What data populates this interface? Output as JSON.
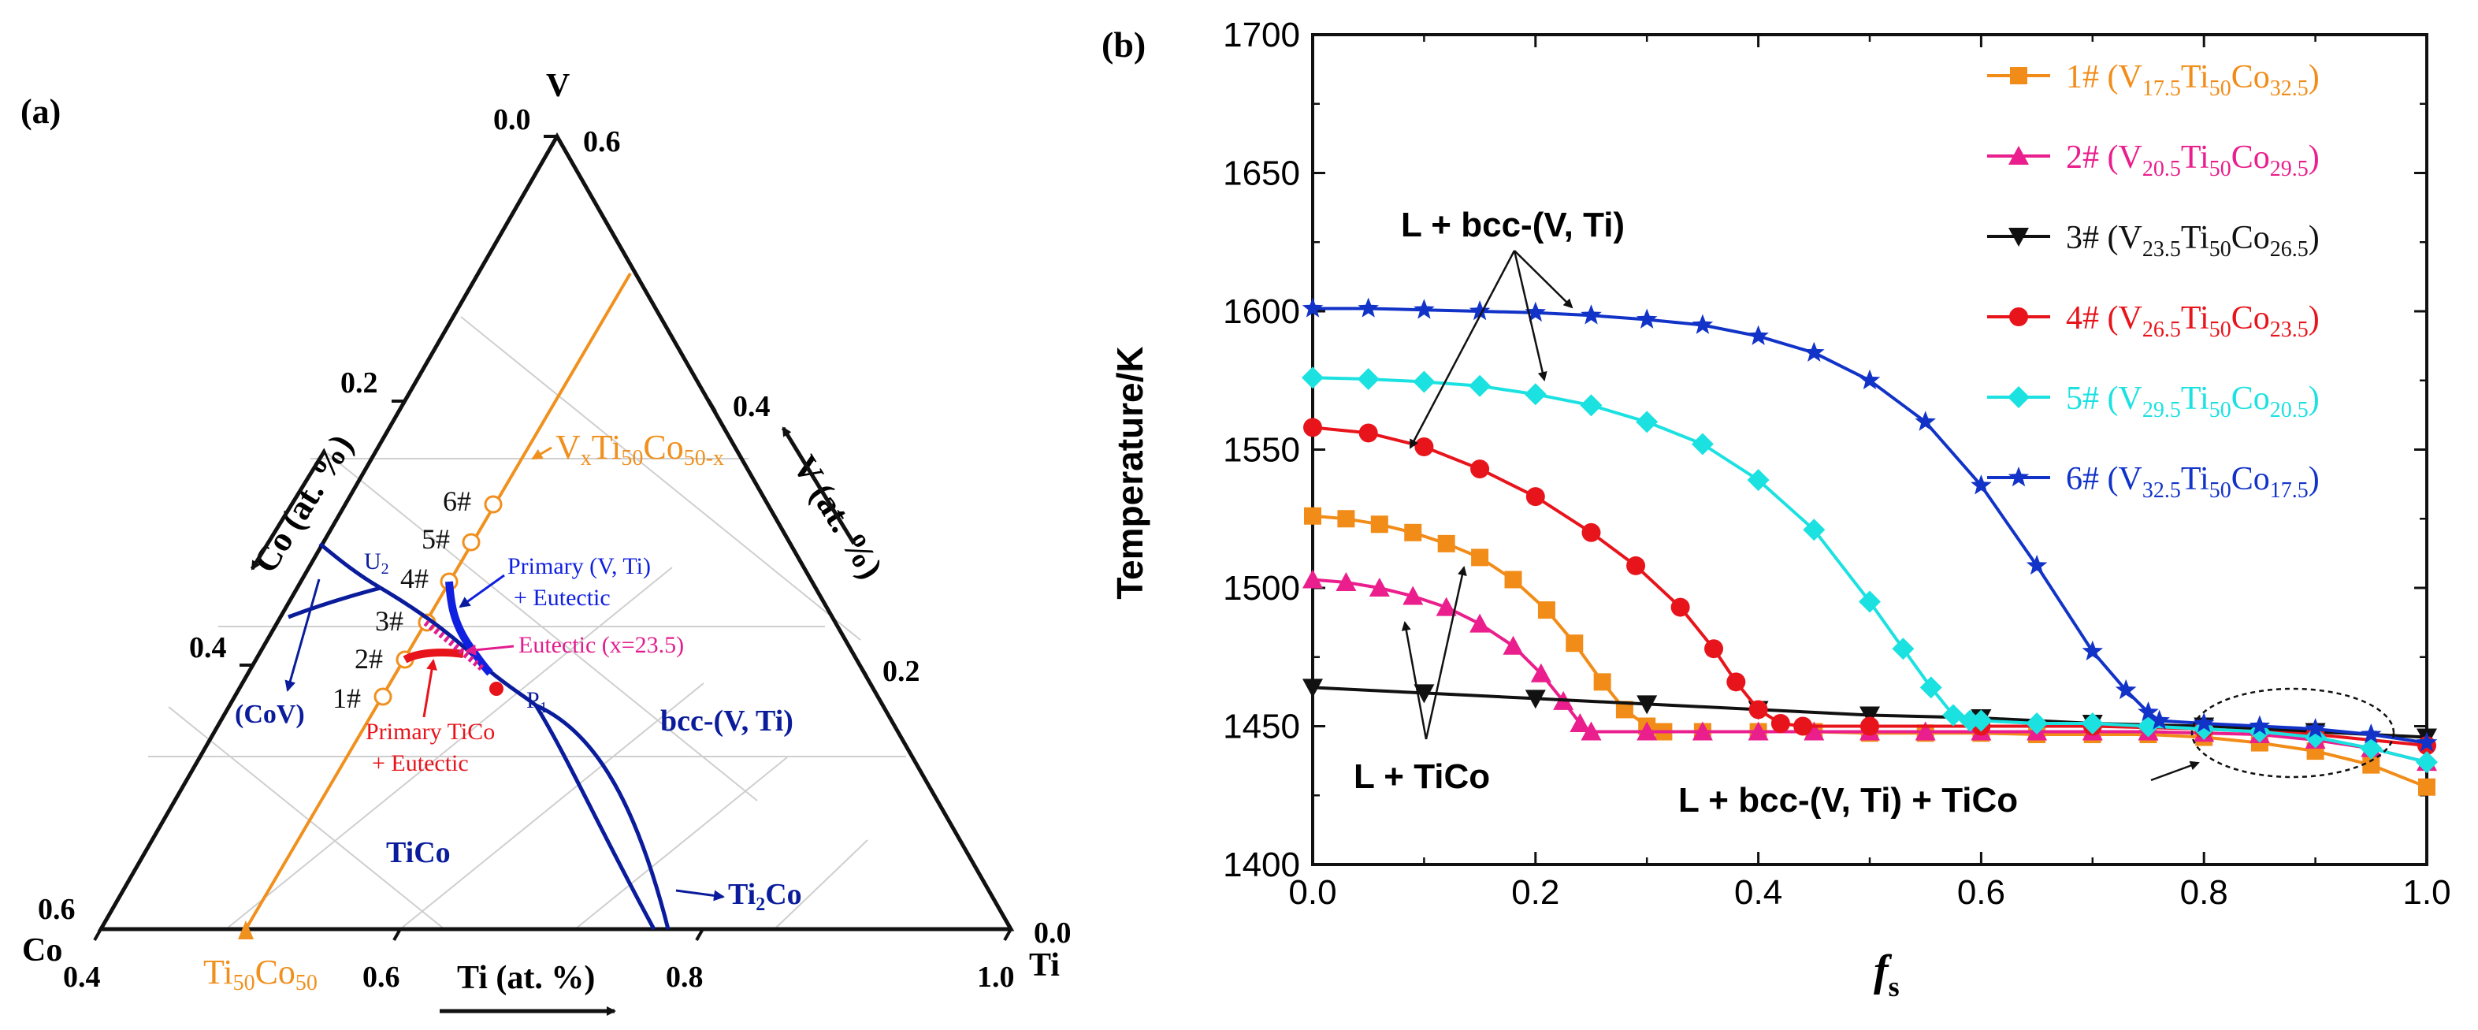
{
  "panel_a": {
    "label": "(a)",
    "vertex_labels": {
      "top": "V",
      "left": "Co",
      "right": "Ti"
    },
    "axis_titles": {
      "co": "Co (at. %)",
      "v": "V (at. %)",
      "ti": "Ti (at. %)"
    },
    "ti_ticks": [
      "0.4",
      "0.6",
      "0.8",
      "1.0"
    ],
    "co_ticks": [
      "0.0",
      "0.2",
      "0.4",
      "0.6"
    ],
    "v_ticks": [
      "0.6",
      "0.4",
      "0.2",
      "0.0"
    ],
    "section_line_label": "V",
    "section_line_label_sub1": "x",
    "section_line_label_mid": "Ti",
    "section_line_label_sub2": "50",
    "section_line_label_co": "Co",
    "section_line_label_sub3": "50-x",
    "base_label": "Ti",
    "base_label_sub1": "50",
    "base_label_co": "Co",
    "base_label_sub2": "50",
    "alloy_labels": [
      "1#",
      "2#",
      "3#",
      "4#",
      "5#",
      "6#"
    ],
    "points": {
      "u": "U",
      "u_sub": "2",
      "p": "P",
      "p_sub": "1"
    },
    "regions": {
      "cov": "(CoV)",
      "bcc": "bcc-(V, Ti)",
      "tico": "TiCo",
      "ti2co": "Ti",
      "ti2co_sub": "2",
      "ti2co_co": "Co"
    },
    "annotations": {
      "primary_vti_1": "Primary (V, Ti)",
      "primary_vti_2": "+ Eutectic",
      "eutectic": "Eutectic (x=23.5)",
      "primary_tico_1": "Primary TiCo",
      "primary_tico_2": "+ Eutectic"
    },
    "colors": {
      "orange": "#F0901E",
      "blue": "#0A1C9B",
      "red": "#E8141B",
      "magenta": "#E21C8E"
    }
  },
  "chart_data": {
    "type": "line",
    "panel_label": "(b)",
    "xlabel": "f",
    "xlabel_sub": "s",
    "ylabel": "Temperature/K",
    "xlim": [
      0,
      1.0
    ],
    "ylim": [
      1400,
      1700
    ],
    "xticks": [
      0.0,
      0.2,
      0.4,
      0.6,
      0.8,
      1.0
    ],
    "xtick_labels": [
      "0.0",
      "0.2",
      "0.4",
      "0.6",
      "0.8",
      "1.0"
    ],
    "yticks": [
      1400,
      1450,
      1500,
      1550,
      1600,
      1650,
      1700
    ],
    "ytick_labels": [
      "1400",
      "1450",
      "1500",
      "1550",
      "1600",
      "1650",
      "1700"
    ],
    "annotations": {
      "top": "L + bcc-(V, Ti)",
      "left": "L + TiCo",
      "bottom": "L + bcc-(V, Ti) + TiCo"
    },
    "series": [
      {
        "name": "1#",
        "v": "17.5",
        "ti": "50",
        "co": "32.5",
        "color": "#F28C18",
        "marker": "square",
        "x": [
          0,
          0.03,
          0.06,
          0.09,
          0.12,
          0.15,
          0.18,
          0.21,
          0.235,
          0.26,
          0.28,
          0.3,
          0.315,
          0.35,
          0.4,
          0.45,
          0.5,
          0.55,
          0.6,
          0.65,
          0.7,
          0.75,
          0.8,
          0.85,
          0.9,
          0.95,
          1.0
        ],
        "y": [
          1526,
          1525,
          1523,
          1520,
          1516,
          1511,
          1503,
          1492,
          1480,
          1466,
          1456,
          1450,
          1448,
          1448,
          1448,
          1448,
          1447.5,
          1447.5,
          1447.5,
          1447,
          1447,
          1447,
          1446,
          1444,
          1441,
          1436,
          1428
        ]
      },
      {
        "name": "2#",
        "v": "20.5",
        "ti": "50",
        "co": "29.5",
        "color": "#EA1E8C",
        "marker": "triangle-up",
        "x": [
          0,
          0.03,
          0.06,
          0.09,
          0.12,
          0.15,
          0.18,
          0.205,
          0.225,
          0.24,
          0.25,
          0.3,
          0.35,
          0.4,
          0.45,
          0.5,
          0.55,
          0.6,
          0.65,
          0.7,
          0.75,
          0.8,
          0.85,
          0.9,
          0.95,
          1.0
        ],
        "y": [
          1503,
          1502,
          1500,
          1497,
          1493,
          1487,
          1479,
          1469,
          1459,
          1451,
          1448,
          1448,
          1448,
          1448,
          1448,
          1448,
          1448,
          1448,
          1448,
          1448,
          1448,
          1447.5,
          1447,
          1445,
          1442,
          1437
        ]
      },
      {
        "name": "3#",
        "v": "23.5",
        "ti": "50",
        "co": "26.5",
        "color": "#111111",
        "marker": "triangle-down",
        "x": [
          0,
          0.1,
          0.2,
          0.3,
          0.4,
          0.5,
          0.6,
          0.7,
          0.8,
          0.9,
          1.0
        ],
        "y": [
          1464,
          1462,
          1460,
          1458,
          1456,
          1454,
          1453,
          1451,
          1450,
          1448,
          1446
        ]
      },
      {
        "name": "4#",
        "v": "26.5",
        "ti": "50",
        "co": "23.5",
        "color": "#E8141B",
        "marker": "circle",
        "x": [
          0,
          0.05,
          0.1,
          0.15,
          0.2,
          0.25,
          0.29,
          0.33,
          0.36,
          0.38,
          0.4,
          0.42,
          0.44,
          0.5,
          0.6,
          0.7,
          0.8,
          0.9,
          1.0
        ],
        "y": [
          1558,
          1556,
          1551,
          1543,
          1533,
          1520,
          1508,
          1493,
          1478,
          1466,
          1456,
          1451,
          1450,
          1450,
          1450,
          1450,
          1449,
          1447,
          1443
        ]
      },
      {
        "name": "5#",
        "v": "29.5",
        "ti": "50",
        "co": "20.5",
        "color": "#1CE1E1",
        "marker": "diamond",
        "x": [
          0,
          0.05,
          0.1,
          0.15,
          0.2,
          0.25,
          0.3,
          0.35,
          0.4,
          0.45,
          0.5,
          0.53,
          0.555,
          0.575,
          0.59,
          0.6,
          0.65,
          0.7,
          0.75,
          0.8,
          0.85,
          0.9,
          0.95,
          1.0
        ],
        "y": [
          1576,
          1575.5,
          1574.5,
          1573,
          1570,
          1566,
          1560,
          1552,
          1539,
          1521,
          1495,
          1478,
          1464,
          1454,
          1452,
          1452,
          1451,
          1451,
          1450,
          1449,
          1448,
          1446,
          1442,
          1437
        ]
      },
      {
        "name": "6#",
        "v": "32.5",
        "ti": "50",
        "co": "17.5",
        "color": "#1233C8",
        "marker": "star",
        "x": [
          0,
          0.05,
          0.1,
          0.15,
          0.2,
          0.25,
          0.3,
          0.35,
          0.4,
          0.45,
          0.5,
          0.55,
          0.6,
          0.65,
          0.7,
          0.73,
          0.75,
          0.76,
          0.8,
          0.85,
          0.9,
          0.95,
          1.0
        ],
        "y": [
          1601,
          1601,
          1600.5,
          1600,
          1599.5,
          1598.5,
          1597,
          1595,
          1591,
          1585,
          1575,
          1560,
          1537,
          1508,
          1477,
          1463,
          1455,
          1452,
          1451,
          1450,
          1449,
          1447,
          1444
        ]
      }
    ]
  }
}
